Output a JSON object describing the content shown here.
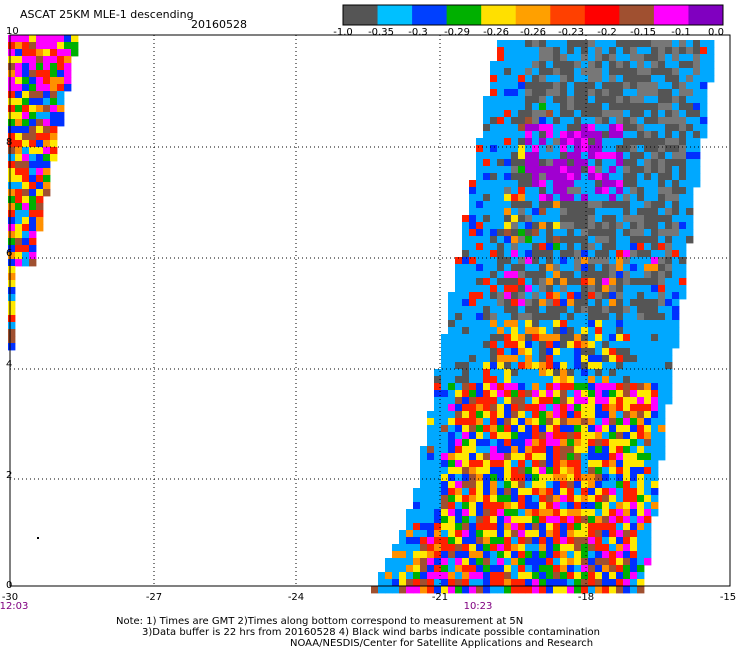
{
  "header": {
    "title": "ASCAT 25KM MLE-1 descending",
    "date": "20160528"
  },
  "colorbar": {
    "labels": [
      "-1.0",
      "-0.35",
      "-0.3",
      "-0.29",
      "-0.26",
      "-0.26",
      "-0.23",
      "-0.2",
      "-0.15",
      "-0.1",
      "0.0"
    ],
    "colors": [
      "#555555",
      "#00c0ff",
      "#0040ff",
      "#00b000",
      "#ffe000",
      "#ffa000",
      "#ff4000",
      "#ff0000",
      "#a05030",
      "#ff00ff",
      "#8000c0"
    ]
  },
  "map": {
    "xlabels": [
      "-30",
      "-27",
      "-24",
      "-21",
      "-18",
      "-15"
    ],
    "ylabels": [
      "10",
      "8",
      "6",
      "4",
      "2",
      "0"
    ],
    "lon_range": [
      -30,
      -15
    ],
    "lat_range": [
      0,
      10
    ],
    "gridlines": true,
    "time_labels": [
      {
        "text": "12:03",
        "lon": -30
      },
      {
        "text": "10:23",
        "lon": -20.2
      }
    ]
  },
  "notes": {
    "line1": "Note: 1) Times are GMT 2)Times along bottom correspond to measurement at 5N",
    "line2": "3)Data buffer is 22 hrs from 20160528 4) Black wind barbs indicate possible contamination",
    "line3": "NOAA/NESDIS/Center for Satellite Applications and Research"
  }
}
